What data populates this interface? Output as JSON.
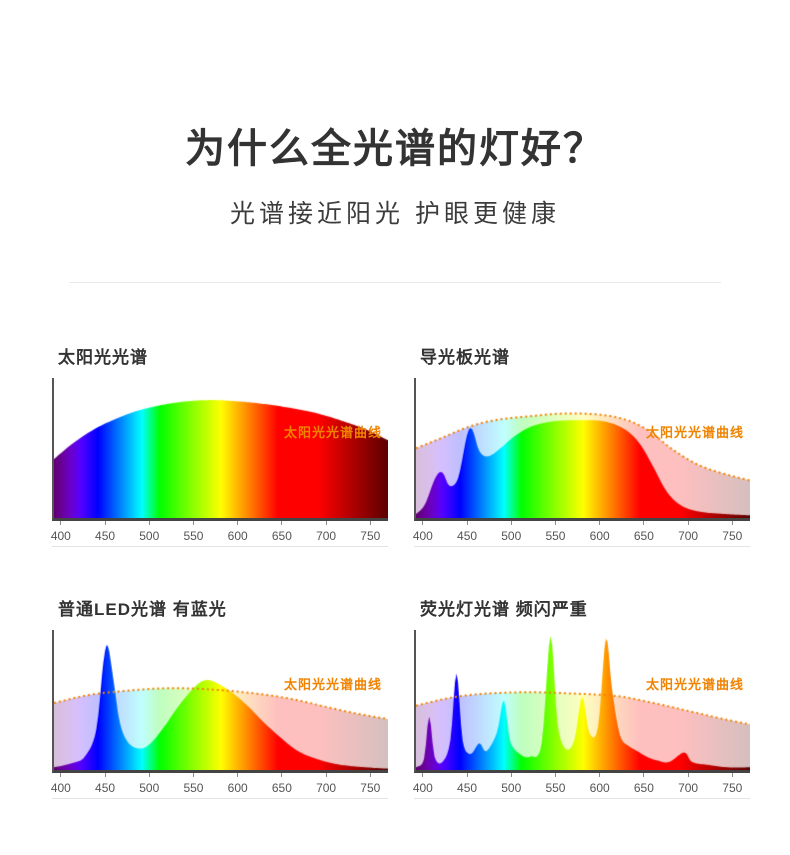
{
  "page": {
    "title": "为什么全光谱的灯好？",
    "subtitle": "光谱接近阳光 护眼更健康"
  },
  "colors": {
    "accent_orange": "#F08300",
    "axis": "#444444",
    "tick_text": "#555555"
  },
  "axis": {
    "xmin": 390,
    "xmax": 770,
    "ticks": [
      400,
      450,
      500,
      550,
      600,
      650,
      700,
      750
    ],
    "ylim": [
      0,
      1
    ]
  },
  "chart_data": [
    {
      "type": "area",
      "title": "太阳光光谱",
      "curve_label": "太阳光光谱曲线",
      "xlim": [
        390,
        770
      ],
      "ylim": [
        0,
        1
      ],
      "spectrum": [
        [
          390,
          0.44
        ],
        [
          410,
          0.55
        ],
        [
          430,
          0.64
        ],
        [
          450,
          0.71
        ],
        [
          480,
          0.79
        ],
        [
          510,
          0.84
        ],
        [
          540,
          0.87
        ],
        [
          570,
          0.88
        ],
        [
          600,
          0.87
        ],
        [
          630,
          0.85
        ],
        [
          660,
          0.82
        ],
        [
          690,
          0.78
        ],
        [
          720,
          0.72
        ],
        [
          745,
          0.66
        ],
        [
          770,
          0.58
        ]
      ],
      "reference": null
    },
    {
      "type": "area",
      "title": "导光板光谱",
      "curve_label": "太阳光光谱曲线",
      "xlim": [
        390,
        770
      ],
      "ylim": [
        0,
        1
      ],
      "spectrum": [
        [
          390,
          0.03
        ],
        [
          400,
          0.1
        ],
        [
          412,
          0.3
        ],
        [
          420,
          0.34
        ],
        [
          428,
          0.24
        ],
        [
          438,
          0.3
        ],
        [
          448,
          0.62
        ],
        [
          454,
          0.66
        ],
        [
          462,
          0.5
        ],
        [
          472,
          0.46
        ],
        [
          486,
          0.52
        ],
        [
          500,
          0.6
        ],
        [
          520,
          0.68
        ],
        [
          545,
          0.72
        ],
        [
          575,
          0.73
        ],
        [
          605,
          0.72
        ],
        [
          628,
          0.66
        ],
        [
          645,
          0.55
        ],
        [
          660,
          0.38
        ],
        [
          675,
          0.2
        ],
        [
          690,
          0.1
        ],
        [
          710,
          0.05
        ],
        [
          740,
          0.03
        ],
        [
          770,
          0.02
        ]
      ],
      "reference": [
        [
          390,
          0.52
        ],
        [
          420,
          0.6
        ],
        [
          450,
          0.68
        ],
        [
          480,
          0.73
        ],
        [
          520,
          0.76
        ],
        [
          560,
          0.78
        ],
        [
          600,
          0.77
        ],
        [
          630,
          0.73
        ],
        [
          655,
          0.65
        ],
        [
          680,
          0.52
        ],
        [
          710,
          0.4
        ],
        [
          740,
          0.33
        ],
        [
          770,
          0.28
        ]
      ]
    },
    {
      "type": "area",
      "title": "普通LED光谱 有蓝光",
      "curve_label": "太阳光光谱曲线",
      "xlim": [
        390,
        770
      ],
      "ylim": [
        0,
        1
      ],
      "spectrum": [
        [
          390,
          0.02
        ],
        [
          410,
          0.05
        ],
        [
          425,
          0.1
        ],
        [
          438,
          0.3
        ],
        [
          446,
          0.8
        ],
        [
          451,
          0.93
        ],
        [
          457,
          0.7
        ],
        [
          465,
          0.35
        ],
        [
          475,
          0.2
        ],
        [
          488,
          0.16
        ],
        [
          500,
          0.2
        ],
        [
          515,
          0.32
        ],
        [
          532,
          0.48
        ],
        [
          550,
          0.62
        ],
        [
          562,
          0.67
        ],
        [
          575,
          0.65
        ],
        [
          592,
          0.58
        ],
        [
          610,
          0.48
        ],
        [
          628,
          0.36
        ],
        [
          648,
          0.24
        ],
        [
          668,
          0.14
        ],
        [
          690,
          0.08
        ],
        [
          715,
          0.04
        ],
        [
          745,
          0.02
        ],
        [
          770,
          0.01
        ]
      ],
      "reference": [
        [
          390,
          0.5
        ],
        [
          430,
          0.56
        ],
        [
          470,
          0.59
        ],
        [
          520,
          0.61
        ],
        [
          570,
          0.6
        ],
        [
          620,
          0.57
        ],
        [
          660,
          0.53
        ],
        [
          700,
          0.47
        ],
        [
          735,
          0.42
        ],
        [
          770,
          0.38
        ]
      ]
    },
    {
      "type": "area",
      "title": "荧光灯光谱 频闪严重",
      "curve_label": "太阳光光谱曲线",
      "xlim": [
        390,
        770
      ],
      "ylim": [
        0,
        1
      ],
      "spectrum": [
        [
          390,
          0.02
        ],
        [
          399,
          0.08
        ],
        [
          405,
          0.4
        ],
        [
          411,
          0.1
        ],
        [
          420,
          0.06
        ],
        [
          429,
          0.22
        ],
        [
          436,
          0.72
        ],
        [
          443,
          0.22
        ],
        [
          452,
          0.12
        ],
        [
          462,
          0.2
        ],
        [
          470,
          0.14
        ],
        [
          482,
          0.28
        ],
        [
          490,
          0.52
        ],
        [
          497,
          0.22
        ],
        [
          508,
          0.12
        ],
        [
          520,
          0.1
        ],
        [
          533,
          0.2
        ],
        [
          543,
          1.0
        ],
        [
          551,
          0.35
        ],
        [
          560,
          0.16
        ],
        [
          570,
          0.22
        ],
        [
          579,
          0.55
        ],
        [
          587,
          0.28
        ],
        [
          597,
          0.32
        ],
        [
          606,
          0.98
        ],
        [
          613,
          0.6
        ],
        [
          622,
          0.26
        ],
        [
          632,
          0.18
        ],
        [
          642,
          0.14
        ],
        [
          652,
          0.1
        ],
        [
          665,
          0.07
        ],
        [
          678,
          0.06
        ],
        [
          695,
          0.13
        ],
        [
          704,
          0.06
        ],
        [
          720,
          0.04
        ],
        [
          745,
          0.02
        ],
        [
          770,
          0.02
        ]
      ],
      "reference": [
        [
          390,
          0.48
        ],
        [
          430,
          0.54
        ],
        [
          470,
          0.57
        ],
        [
          520,
          0.58
        ],
        [
          570,
          0.57
        ],
        [
          620,
          0.55
        ],
        [
          660,
          0.5
        ],
        [
          700,
          0.44
        ],
        [
          740,
          0.38
        ],
        [
          770,
          0.34
        ]
      ]
    }
  ]
}
